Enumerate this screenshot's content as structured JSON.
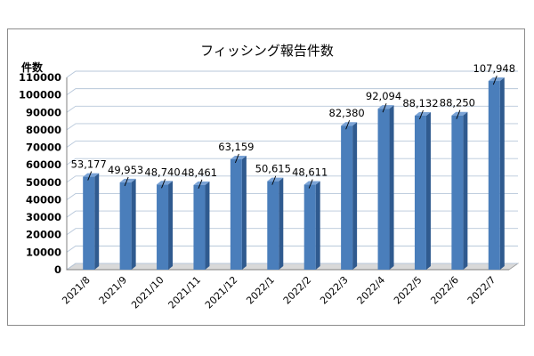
{
  "chart_data": {
    "type": "bar",
    "title": "フィッシング報告件数",
    "ylabel": "件数",
    "xlabel": "",
    "categories": [
      "2021/8",
      "2021/9",
      "2021/10",
      "2021/11",
      "2021/12",
      "2022/1",
      "2022/2",
      "2022/3",
      "2022/4",
      "2022/5",
      "2022/6",
      "2022/7"
    ],
    "values": [
      53177,
      49953,
      48740,
      48461,
      63159,
      50615,
      48611,
      82380,
      92094,
      88132,
      88250,
      107948
    ],
    "data_labels": [
      "53,177",
      "49,953",
      "48,740",
      "48,461",
      "63,159",
      "50,615",
      "48,611",
      "82,380",
      "92,094",
      "88,132",
      "88,250",
      "107,948"
    ],
    "ylim": [
      0,
      110000
    ],
    "yticks": [
      0,
      10000,
      20000,
      30000,
      40000,
      50000,
      60000,
      70000,
      80000,
      90000,
      100000,
      110000
    ],
    "ytick_labels": [
      "0",
      "10000",
      "20000",
      "30000",
      "40000",
      "50000",
      "60000",
      "70000",
      "80000",
      "90000",
      "100000",
      "110000"
    ],
    "grid": true,
    "legend": "none",
    "colors": {
      "bar_front": "#4a7ebb",
      "bar_side": "#2f5a8f",
      "bar_top": "#7aa3d6",
      "grid": "#b7c7da",
      "wall": "#ffffff",
      "floor": "#d9d9d9"
    }
  }
}
